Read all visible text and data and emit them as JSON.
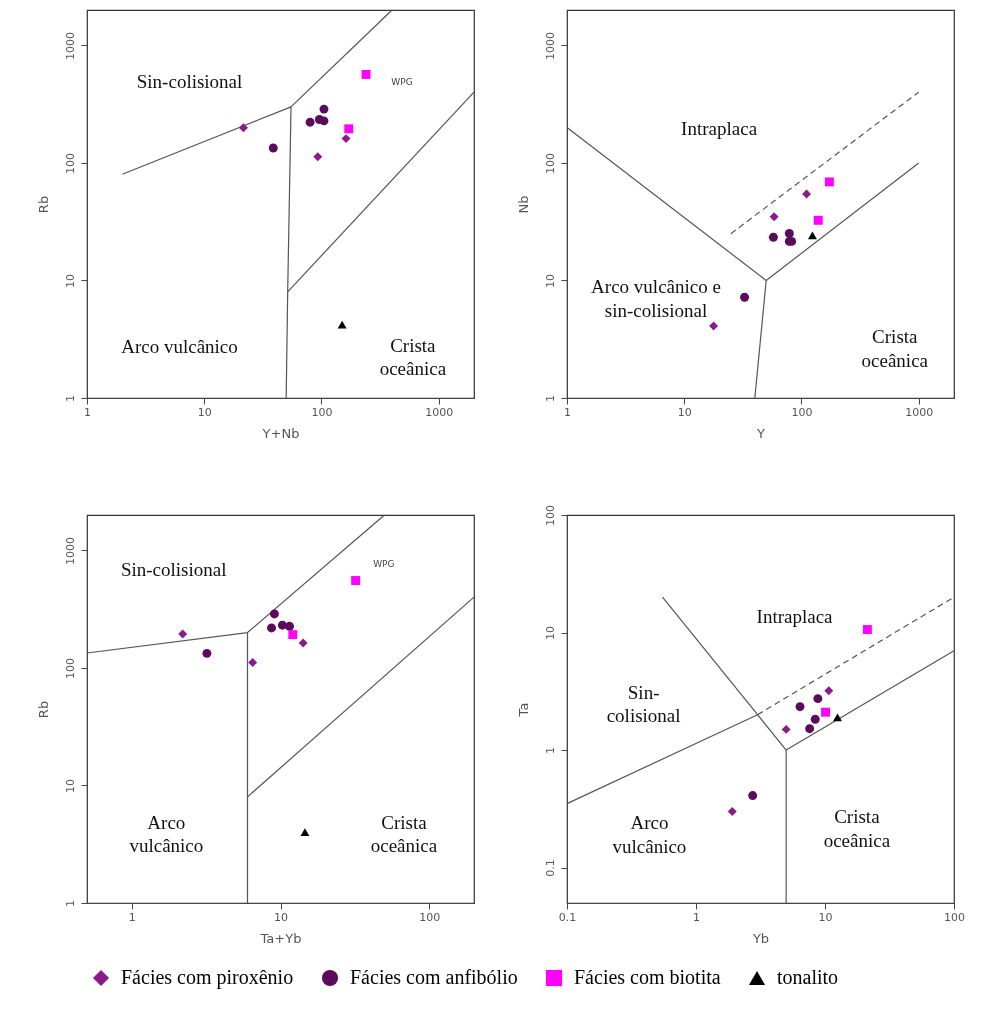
{
  "chart_data": [
    {
      "type": "scatter",
      "xlabel": "Y+Nb",
      "ylabel": "Rb",
      "log": "xy",
      "xlim": [
        1,
        2000
      ],
      "ylim": [
        1,
        2000
      ],
      "xticks": [
        1,
        10,
        100,
        1000
      ],
      "yticks": [
        1,
        10,
        100,
        1000
      ],
      "legend": "bottom",
      "series": [
        {
          "name": "Fácies com piroxênio",
          "color": "#8b1a8b",
          "marker": "diamond",
          "x": [
            21.6,
            93,
            162
          ],
          "values": [
            199,
            113,
            161
          ]
        },
        {
          "name": "Fácies com anfibólio",
          "color": "#5c0a5c",
          "marker": "circle",
          "x": [
            38.8,
            80,
            96,
            105,
            105
          ],
          "values": [
            134,
            222,
            234,
            228,
            287
          ]
        },
        {
          "name": "Fácies com biotita",
          "color": "#ff00ff",
          "marker": "square",
          "x": [
            240,
            171
          ],
          "values": [
            566,
            195
          ]
        },
        {
          "name": "tonalito",
          "color": "#000000",
          "marker": "triangle",
          "x": [
            150
          ],
          "values": [
            4.2
          ]
        },
        {
          "type": "line",
          "color": "#555555",
          "marker": "none",
          "line_style": "solid",
          "x": [
            2,
            55,
            400
          ],
          "values": [
            80,
            300,
            2000
          ]
        },
        {
          "type": "line",
          "color": "#555555",
          "marker": "none",
          "line_style": "solid",
          "x": [
            55,
            51.5,
            50
          ],
          "values": [
            300,
            8,
            1
          ]
        },
        {
          "type": "line",
          "color": "#555555",
          "marker": "none",
          "line_style": "solid",
          "x": [
            51.5,
            2000
          ],
          "values": [
            8,
            400
          ]
        }
      ],
      "annotations": [
        "Sin-colisional",
        "Arco vulcânico",
        "Crista\noceânica",
        "WPG"
      ]
    },
    {
      "type": "scatter",
      "xlabel": "Y",
      "ylabel": "Nb",
      "log": "xy",
      "xlim": [
        1,
        2000
      ],
      "ylim": [
        1,
        2000
      ],
      "xticks": [
        1,
        10,
        100,
        1000
      ],
      "yticks": [
        1,
        10,
        100,
        1000
      ],
      "legend": "bottom",
      "series": [
        {
          "name": "Fácies com piroxênio",
          "color": "#8b1a8b",
          "marker": "diamond",
          "x": [
            17.8,
            58.4,
            110.6
          ],
          "values": [
            4.1,
            34.9,
            54.4
          ]
        },
        {
          "name": "Fácies com anfibólio",
          "color": "#5c0a5c",
          "marker": "circle",
          "x": [
            32.7,
            57.6,
            78.8,
            78.8,
            82.4
          ],
          "values": [
            7.2,
            23.3,
            25.1,
            21.5,
            21.5
          ]
        },
        {
          "name": "Fácies com biotita",
          "color": "#ff00ff",
          "marker": "square",
          "x": [
            173,
            139
          ],
          "values": [
            68.9,
            32.5
          ]
        },
        {
          "name": "tonalito",
          "color": "#000000",
          "marker": "triangle",
          "x": [
            124
          ],
          "values": [
            24.2
          ]
        },
        {
          "type": "line",
          "color": "#555555",
          "marker": "none",
          "line_style": "solid",
          "x": [
            1,
            50,
            1000
          ],
          "values": [
            200,
            10,
            100
          ]
        },
        {
          "type": "line",
          "color": "#555555",
          "marker": "none",
          "line_style": "solid",
          "x": [
            50,
            40
          ],
          "values": [
            10,
            1
          ]
        },
        {
          "type": "line",
          "color": "#555555",
          "marker": "none",
          "line_style": "dashed",
          "x": [
            25,
            1000
          ],
          "values": [
            25,
            400
          ]
        }
      ],
      "annotations": [
        "Intraplaca",
        "Arco vulcânico e\nsin-colisional",
        "Crista\noceânica"
      ]
    },
    {
      "type": "scatter",
      "xlabel": "Ta+Yb",
      "ylabel": "Rb",
      "log": "xy",
      "xlim": [
        0.5,
        200
      ],
      "ylim": [
        1,
        2000
      ],
      "xticks": [
        1,
        10,
        100
      ],
      "yticks": [
        1,
        10,
        100,
        1000
      ],
      "legend": "bottom",
      "series": [
        {
          "name": "Fácies com piroxênio",
          "color": "#8b1a8b",
          "marker": "diamond",
          "x": [
            2.2,
            6.5,
            14.2
          ],
          "values": [
            194,
            111,
            163
          ]
        },
        {
          "name": "Fácies com anfibólio",
          "color": "#5c0a5c",
          "marker": "circle",
          "x": [
            3.2,
            8.7,
            10.3,
            11.5,
            9.1
          ],
          "values": [
            133,
            219,
            231,
            226,
            288
          ]
        },
        {
          "name": "Fácies com biotita",
          "color": "#ff00ff",
          "marker": "square",
          "x": [
            32,
            12.1
          ],
          "values": [
            554,
            192
          ]
        },
        {
          "name": "tonalito",
          "color": "#000000",
          "marker": "triangle",
          "x": [
            14.6
          ],
          "values": [
            4.0
          ]
        },
        {
          "type": "line",
          "color": "#555555",
          "marker": "none",
          "line_style": "solid",
          "x": [
            0.5,
            6,
            50
          ],
          "values": [
            134,
            200,
            2000
          ]
        },
        {
          "type": "line",
          "color": "#555555",
          "marker": "none",
          "line_style": "solid",
          "x": [
            6,
            6
          ],
          "values": [
            200,
            1
          ]
        },
        {
          "type": "line",
          "color": "#555555",
          "marker": "none",
          "line_style": "solid",
          "x": [
            6,
            200
          ],
          "values": [
            8,
            400
          ]
        }
      ],
      "annotations": [
        "Sin-colisional",
        "Arco\nvulcânico",
        "Crista\noceânica",
        "WPG"
      ]
    },
    {
      "type": "scatter",
      "xlabel": "Yb",
      "ylabel": "Ta",
      "log": "xy",
      "xlim": [
        0.1,
        100
      ],
      "ylim": [
        0.05,
        100
      ],
      "xticks": [
        0.1,
        1,
        10,
        100
      ],
      "yticks": [
        0.1,
        1,
        10,
        100
      ],
      "legend": "bottom",
      "series": [
        {
          "name": "Fácies com piroxênio",
          "color": "#8b1a8b",
          "marker": "diamond",
          "x": [
            1.91,
            5.0,
            10.7
          ],
          "values": [
            0.3,
            1.5,
            3.2
          ]
        },
        {
          "name": "Fácies com anfibólio",
          "color": "#5c0a5c",
          "marker": "circle",
          "x": [
            2.75,
            6.4,
            8.8,
            7.6,
            8.4
          ],
          "values": [
            0.41,
            2.34,
            2.74,
            1.52,
            1.83
          ]
        },
        {
          "name": "Fácies com biotita",
          "color": "#ff00ff",
          "marker": "square",
          "x": [
            21.3,
            10.1
          ],
          "values": [
            10.6,
            2.1
          ]
        },
        {
          "name": "tonalito",
          "color": "#000000",
          "marker": "triangle",
          "x": [
            12.5
          ],
          "values": [
            1.9
          ]
        },
        {
          "type": "line",
          "color": "#555555",
          "marker": "none",
          "line_style": "solid",
          "x": [
            0.55,
            3,
            5
          ],
          "values": [
            20,
            2,
            1
          ]
        },
        {
          "type": "line",
          "color": "#555555",
          "marker": "none",
          "line_style": "solid",
          "x": [
            5,
            100
          ],
          "values": [
            1,
            7
          ]
        },
        {
          "type": "line",
          "color": "#555555",
          "marker": "none",
          "line_style": "solid",
          "x": [
            5,
            5
          ],
          "values": [
            1,
            0.05
          ]
        },
        {
          "type": "line",
          "color": "#555555",
          "marker": "none",
          "line_style": "solid",
          "x": [
            0.1,
            3
          ],
          "values": [
            0.35,
            2
          ]
        },
        {
          "type": "line",
          "color": "#555555",
          "marker": "none",
          "line_style": "dashed",
          "x": [
            3,
            100
          ],
          "values": [
            2,
            20
          ]
        }
      ],
      "annotations": [
        "Intraplaca",
        "Sin-\ncolisional",
        "Arco\nvulcânico",
        "Crista\noceânica"
      ]
    }
  ]
}
